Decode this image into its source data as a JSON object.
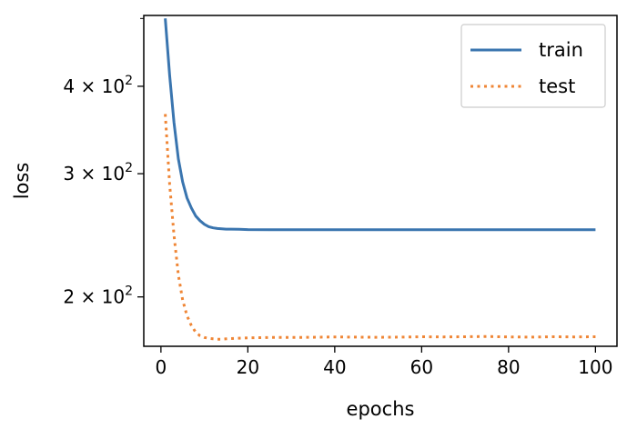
{
  "chart_data": {
    "type": "line",
    "xlabel": "epochs",
    "ylabel": "loss",
    "xlim": [
      -3.95,
      104.95
    ],
    "ylim": [
      170,
      505
    ],
    "y_scale": "log",
    "grid": false,
    "legend_position": "top-right",
    "x_ticks": [
      {
        "value": 0,
        "label": "0"
      },
      {
        "value": 20,
        "label": "20"
      },
      {
        "value": 40,
        "label": "40"
      },
      {
        "value": 60,
        "label": "60"
      },
      {
        "value": 80,
        "label": "80"
      },
      {
        "value": 100,
        "label": "100"
      }
    ],
    "y_ticks": [
      {
        "value": 200,
        "mantissa": "2",
        "base": "10",
        "exponent": "2"
      },
      {
        "value": 300,
        "mantissa": "3",
        "base": "10",
        "exponent": "2"
      },
      {
        "value": 400,
        "mantissa": "4",
        "base": "10",
        "exponent": "2"
      }
    ],
    "y_minor_ticks": [
      500
    ],
    "series": [
      {
        "name": "train",
        "color": "#3a75af",
        "style": "solid",
        "x": [
          1,
          2,
          3,
          4,
          5,
          6,
          7,
          8,
          9,
          10,
          11,
          12,
          13,
          14,
          15,
          16,
          18,
          20,
          25,
          30,
          40,
          50,
          60,
          70,
          80,
          90,
          100
        ],
        "y": [
          500,
          415,
          355,
          315,
          292,
          277,
          268,
          261,
          257,
          254,
          252,
          251,
          250.5,
          250.2,
          250,
          250,
          249.8,
          249.6,
          249.5,
          249.5,
          249.5,
          249.5,
          249.5,
          249.5,
          249.5,
          249.5,
          249.5
        ]
      },
      {
        "name": "test",
        "color": "#ef8636",
        "style": "dotted",
        "x": [
          1,
          2,
          3,
          4,
          5,
          6,
          7,
          8,
          9,
          10,
          11,
          12,
          13,
          14,
          15,
          16,
          18,
          20,
          25,
          30,
          35,
          40,
          45,
          50,
          55,
          60,
          65,
          70,
          75,
          80,
          85,
          90,
          95,
          100
        ],
        "y": [
          365,
          290,
          245,
          215,
          198,
          188,
          182,
          178,
          176,
          175,
          174.5,
          174.2,
          174,
          174,
          174.2,
          174.4,
          174.6,
          174.8,
          175,
          175,
          175.1,
          175.3,
          175.2,
          175.1,
          175.2,
          175.4,
          175.3,
          175.4,
          175.6,
          175.3,
          175.2,
          175.4,
          175.3,
          175.4
        ]
      }
    ]
  }
}
